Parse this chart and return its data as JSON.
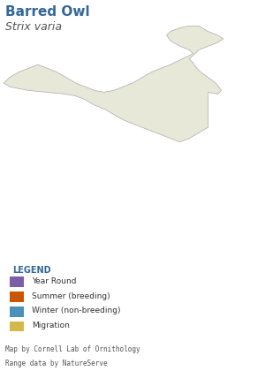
{
  "title": "Barred Owl",
  "subtitle": "Strix varia",
  "title_color": "#336699",
  "subtitle_color": "#555555",
  "background_color": "#ffffff",
  "map_land_color": "#e8e8d8",
  "map_border_color": "#aaaaaa",
  "map_ocean_color": "#ffffff",
  "legend_bg_color": "#e8e8d8",
  "legend_title": "LEGEND",
  "legend_title_color": "#336699",
  "legend_items": [
    {
      "label": "Year Round",
      "color": "#7b5ea7"
    },
    {
      "label": "Summer (breeding)",
      "color": "#cc5500"
    },
    {
      "label": "Winter (non-breeding)",
      "color": "#4a90b8"
    },
    {
      "label": "Migration",
      "color": "#d4b84a"
    }
  ],
  "footer_line1": "Map by Cornell Lab of Ornithology",
  "footer_line2": "Range data by NatureServe",
  "range_color": "#7b5ea7",
  "range_alpha": 0.85
}
